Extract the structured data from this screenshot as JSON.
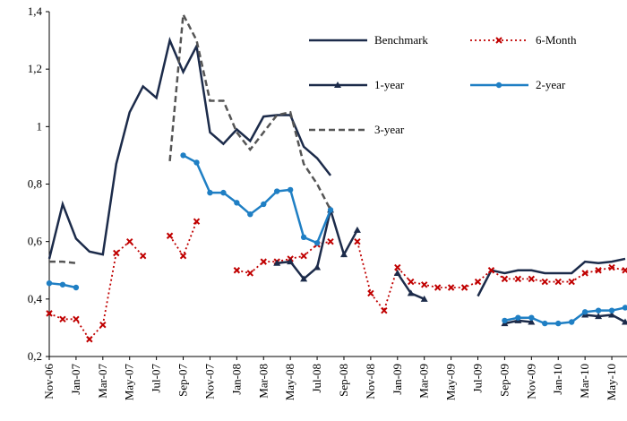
{
  "chart_data": {
    "type": "line",
    "categories": [
      "Nov-06",
      null,
      "Jan-07",
      null,
      "Mar-07",
      null,
      "May-07",
      null,
      "Jul-07",
      null,
      "Sep-07",
      null,
      "Nov-07",
      null,
      "Jan-08",
      null,
      "Mar-08",
      null,
      "May-08",
      null,
      "Jul-08",
      null,
      "Sep-08",
      null,
      "Nov-08",
      null,
      "Jan-09",
      null,
      "Mar-09",
      null,
      "May-09",
      null,
      "Jul-09",
      null,
      "Sep-09",
      null,
      "Nov-09",
      null,
      "Jan-10",
      null,
      "Mar-10",
      null,
      "May-10",
      null
    ],
    "series": [
      {
        "name": "Benchmark",
        "color": "#1c2b4a",
        "style": "solid",
        "marker": "none",
        "values": [
          0.54,
          0.73,
          0.61,
          0.565,
          0.555,
          0.87,
          1.05,
          1.14,
          1.1,
          1.3,
          1.19,
          1.28,
          0.98,
          0.94,
          0.99,
          0.95,
          1.035,
          1.04,
          1.04,
          0.93,
          0.89,
          0.83,
          null,
          null,
          null,
          null,
          null,
          null,
          null,
          null,
          null,
          null,
          0.41,
          0.5,
          0.49,
          0.5,
          0.5,
          0.49,
          0.49,
          0.49,
          0.53,
          0.525,
          0.53,
          0.54
        ]
      },
      {
        "name": "6-Month",
        "color": "#c00000",
        "style": "dotted",
        "marker": "x",
        "values": [
          0.35,
          0.33,
          0.33,
          0.26,
          0.31,
          0.56,
          0.6,
          0.55,
          null,
          0.62,
          0.55,
          0.67,
          null,
          null,
          0.5,
          0.49,
          0.53,
          0.53,
          0.54,
          0.55,
          0.59,
          0.6,
          null,
          0.6,
          0.42,
          0.36,
          0.51,
          0.46,
          0.45,
          0.44,
          0.44,
          0.44,
          0.46,
          0.5,
          0.47,
          0.47,
          0.47,
          0.46,
          0.46,
          0.46,
          0.49,
          0.5,
          0.51,
          0.5
        ]
      },
      {
        "name": "1-year",
        "color": "#1c2b4a",
        "style": "solid",
        "marker": "triangle",
        "values": [
          null,
          null,
          null,
          null,
          null,
          null,
          null,
          null,
          null,
          null,
          null,
          null,
          null,
          null,
          null,
          null,
          null,
          0.525,
          0.53,
          0.47,
          0.51,
          0.71,
          0.555,
          0.64,
          null,
          null,
          0.49,
          0.42,
          0.4,
          null,
          null,
          null,
          null,
          null,
          0.315,
          0.325,
          0.32,
          null,
          null,
          null,
          0.345,
          0.34,
          0.345,
          0.32
        ]
      },
      {
        "name": "2-year",
        "color": "#1f7fc4",
        "style": "solid",
        "marker": "circle",
        "values": [
          0.455,
          0.45,
          0.44,
          null,
          null,
          null,
          null,
          null,
          null,
          null,
          0.9,
          0.875,
          0.77,
          0.77,
          0.735,
          0.695,
          0.73,
          0.775,
          0.78,
          0.615,
          0.595,
          0.71,
          null,
          null,
          null,
          null,
          null,
          null,
          null,
          null,
          null,
          null,
          null,
          null,
          0.325,
          0.335,
          0.335,
          0.315,
          0.315,
          0.32,
          0.355,
          0.36,
          0.36,
          0.37
        ]
      },
      {
        "name": "3-year",
        "color": "#555555",
        "style": "dashed",
        "marker": "none",
        "values": [
          0.53,
          0.53,
          0.525,
          null,
          null,
          null,
          null,
          null,
          null,
          0.88,
          1.39,
          1.3,
          1.09,
          1.09,
          0.98,
          0.92,
          0.98,
          1.04,
          1.05,
          0.87,
          0.8,
          0.71,
          null,
          null,
          null,
          null,
          null,
          null,
          null,
          null,
          null,
          null,
          null,
          null,
          null,
          null,
          null,
          null,
          null,
          null,
          null,
          null,
          null,
          null
        ]
      }
    ],
    "ylim": [
      0.2,
      1.4
    ],
    "yticks": [
      {
        "value": 0.2,
        "label": "0,2"
      },
      {
        "value": 0.4,
        "label": "0,4"
      },
      {
        "value": 0.6,
        "label": "0,6"
      },
      {
        "value": 0.8,
        "label": "0,8"
      },
      {
        "value": 1,
        "label": "1"
      },
      {
        "value": 1.2,
        "label": "1,2"
      },
      {
        "value": 1.4,
        "label": "1,4"
      }
    ],
    "grid": false,
    "legend": "upper right"
  }
}
